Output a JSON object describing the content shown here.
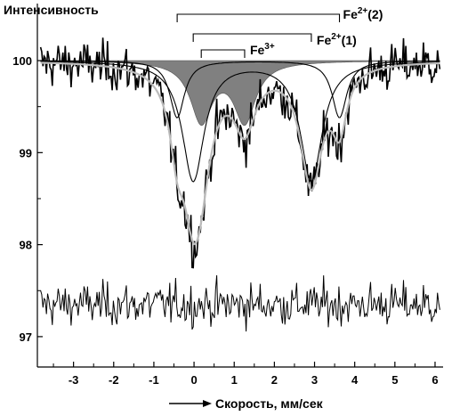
{
  "chart_data": {
    "type": "line",
    "ylabel": "Интенсивность",
    "xlabel": "Скорость, мм/сек",
    "xlim": [
      -3.9,
      6.2
    ],
    "ylim": [
      96.67,
      100.62
    ],
    "x_ticks": [
      -3,
      -2,
      -1,
      0,
      1,
      2,
      3,
      4,
      5,
      6
    ],
    "x_tick_labels": [
      "-3",
      "-2",
      "-1",
      "0",
      "1",
      "2",
      "3",
      "4",
      "5",
      "6"
    ],
    "y_ticks": [
      97,
      98,
      99,
      100
    ],
    "y_tick_labels": [
      "97",
      "98",
      "99",
      "100"
    ],
    "baseline": 100,
    "residual_offset": 97.35,
    "series": [
      {
        "role": "experimental",
        "color": "#000000",
        "noise": 0.18,
        "description_hidden": true
      },
      {
        "role": "envelope-fit",
        "color": "#bbbbbb"
      },
      {
        "role": "component-line",
        "site": "Fe2+(1)",
        "color": "#000000",
        "peaks": [
          {
            "x": -0.02,
            "depth": 1.3,
            "hwhm": 0.33
          },
          {
            "x": 2.92,
            "depth": 1.3,
            "hwhm": 0.33
          }
        ]
      },
      {
        "role": "component-line",
        "site": "Fe2+(2)",
        "color": "#000000",
        "peaks": [
          {
            "x": -0.42,
            "depth": 0.62,
            "hwhm": 0.22
          },
          {
            "x": 3.62,
            "depth": 0.62,
            "hwhm": 0.22
          }
        ]
      },
      {
        "role": "component-filled",
        "site": "Fe3+",
        "color": "#808080",
        "peaks": [
          {
            "x": 0.18,
            "depth": 0.65,
            "hwhm": 0.33
          },
          {
            "x": 1.26,
            "depth": 0.65,
            "hwhm": 0.33
          }
        ]
      }
    ],
    "bracket_labels": [
      {
        "id": "fe2-2",
        "base": "Fe",
        "sup": "2+",
        "suffix": "(2)",
        "x1": -0.42,
        "x2": 3.62
      },
      {
        "id": "fe2-1",
        "base": "Fe",
        "sup": "2+",
        "suffix": "(1)",
        "x1": -0.02,
        "x2": 2.92
      },
      {
        "id": "fe3",
        "base": "Fe",
        "sup": "3+",
        "suffix": "",
        "x1": 0.18,
        "x2": 1.26
      }
    ]
  }
}
